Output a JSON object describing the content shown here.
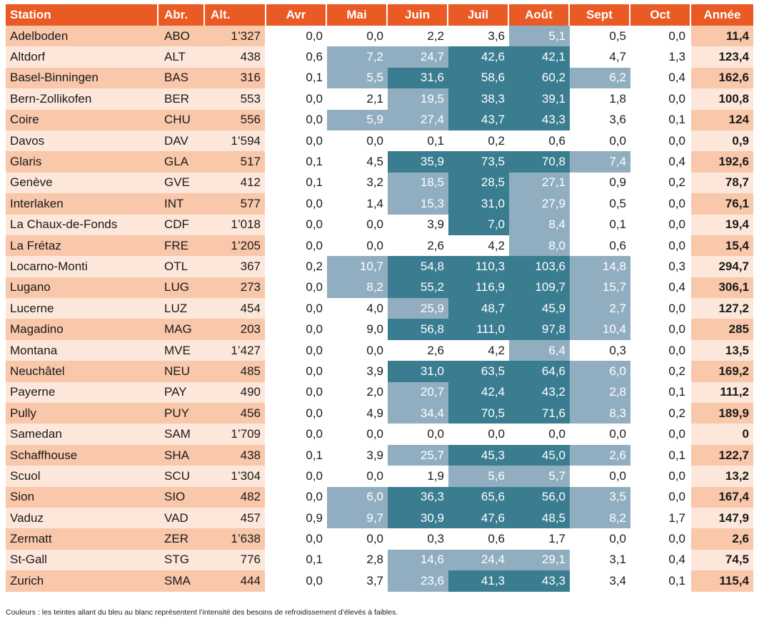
{
  "table": {
    "headers": [
      "Station",
      "Abr.",
      "Alt.",
      "Avr",
      "Mai",
      "Juin",
      "Juil",
      "Août",
      "Sept",
      "Oct",
      "Année"
    ],
    "colors": {
      "header": "#ea5a24",
      "row_dark": "#f9c7aa",
      "row_light": "#fde7da",
      "year_dark": "#f9c7aa",
      "year_light": "#fde7da",
      "shade_strong": "#3a7d91",
      "shade_light": "#91aec0"
    },
    "rows": [
      {
        "station": "Adelboden",
        "abr": "ABO",
        "alt": "1’327",
        "vals": [
          "0,0",
          "0,0",
          "2,2",
          "3,6",
          "5,1",
          "0,5",
          "0,0"
        ],
        "shade": [
          "w",
          "w",
          "w",
          "w",
          "l",
          "w",
          "w"
        ],
        "year": "11,4"
      },
      {
        "station": "Altdorf",
        "abr": "ALT",
        "alt": "438",
        "vals": [
          "0,6",
          "7,2",
          "24,7",
          "42,6",
          "42,1",
          "4,7",
          "1,3"
        ],
        "shade": [
          "w",
          "l",
          "l",
          "t",
          "t",
          "w",
          "w"
        ],
        "year": "123,4"
      },
      {
        "station": "Basel-Binningen",
        "abr": "BAS",
        "alt": "316",
        "vals": [
          "0,1",
          "5,5",
          "31,6",
          "58,6",
          "60,2",
          "6,2",
          "0,4"
        ],
        "shade": [
          "w",
          "l",
          "t",
          "t",
          "t",
          "l",
          "w"
        ],
        "year": "162,6"
      },
      {
        "station": "Bern-Zollikofen",
        "abr": "BER",
        "alt": "553",
        "vals": [
          "0,0",
          "2,1",
          "19,5",
          "38,3",
          "39,1",
          "1,8",
          "0,0"
        ],
        "shade": [
          "w",
          "w",
          "l",
          "t",
          "t",
          "w",
          "w"
        ],
        "year": "100,8"
      },
      {
        "station": "Coire",
        "abr": "CHU",
        "alt": "556",
        "vals": [
          "0,0",
          "5,9",
          "27,4",
          "43,7",
          "43,3",
          "3,6",
          "0,1"
        ],
        "shade": [
          "w",
          "l",
          "l",
          "t",
          "t",
          "w",
          "w"
        ],
        "year": "124"
      },
      {
        "station": "Davos",
        "abr": "DAV",
        "alt": "1’594",
        "vals": [
          "0,0",
          "0,0",
          "0,1",
          "0,2",
          "0,6",
          "0,0",
          "0,0"
        ],
        "shade": [
          "w",
          "w",
          "w",
          "w",
          "w",
          "w",
          "w"
        ],
        "year": "0,9"
      },
      {
        "station": "Glaris",
        "abr": "GLA",
        "alt": "517",
        "vals": [
          "0,1",
          "4,5",
          "35,9",
          "73,5",
          "70,8",
          "7,4",
          "0,4"
        ],
        "shade": [
          "w",
          "w",
          "t",
          "t",
          "t",
          "l",
          "w"
        ],
        "year": "192,6"
      },
      {
        "station": "Genève",
        "abr": "GVE",
        "alt": "412",
        "vals": [
          "0,1",
          "3,2",
          "18,5",
          "28,5",
          "27,1",
          "0,9",
          "0,2"
        ],
        "shade": [
          "w",
          "w",
          "l",
          "t",
          "l",
          "w",
          "w"
        ],
        "year": "78,7"
      },
      {
        "station": "Interlaken",
        "abr": "INT",
        "alt": "577",
        "vals": [
          "0,0",
          "1,4",
          "15,3",
          "31,0",
          "27,9",
          "0,5",
          "0,0"
        ],
        "shade": [
          "w",
          "w",
          "l",
          "t",
          "l",
          "w",
          "w"
        ],
        "year": "76,1"
      },
      {
        "station": "La Chaux-de-Fonds",
        "abr": "CDF",
        "alt": "1’018",
        "vals": [
          "0,0",
          "0,0",
          "3,9",
          "7,0",
          "8,4",
          "0,1",
          "0,0"
        ],
        "shade": [
          "w",
          "w",
          "w",
          "t",
          "l",
          "w",
          "w"
        ],
        "year": "19,4"
      },
      {
        "station": "La Frétaz",
        "abr": "FRE",
        "alt": "1’205",
        "vals": [
          "0,0",
          "0,0",
          "2,6",
          "4,2",
          "8,0",
          "0,6",
          "0,0"
        ],
        "shade": [
          "w",
          "w",
          "w",
          "w",
          "l",
          "w",
          "w"
        ],
        "year": "15,4"
      },
      {
        "station": "Locarno-Monti",
        "abr": "OTL",
        "alt": "367",
        "vals": [
          "0,2",
          "10,7",
          "54,8",
          "110,3",
          "103,6",
          "14,8",
          "0,3"
        ],
        "shade": [
          "w",
          "l",
          "t",
          "t",
          "t",
          "l",
          "w"
        ],
        "year": "294,7"
      },
      {
        "station": "Lugano",
        "abr": "LUG",
        "alt": "273",
        "vals": [
          "0,0",
          "8,2",
          "55,2",
          "116,9",
          "109,7",
          "15,7",
          "0,4"
        ],
        "shade": [
          "w",
          "l",
          "t",
          "t",
          "t",
          "l",
          "w"
        ],
        "year": "306,1"
      },
      {
        "station": "Lucerne",
        "abr": "LUZ",
        "alt": "454",
        "vals": [
          "0,0",
          "4,0",
          "25,9",
          "48,7",
          "45,9",
          "2,7",
          "0,0"
        ],
        "shade": [
          "w",
          "w",
          "l",
          "t",
          "t",
          "l",
          "w"
        ],
        "year": "127,2"
      },
      {
        "station": "Magadino",
        "abr": "MAG",
        "alt": "203",
        "vals": [
          "0,0",
          "9,0",
          "56,8",
          "111,0",
          "97,8",
          "10,4",
          "0,0"
        ],
        "shade": [
          "w",
          "w",
          "t",
          "t",
          "t",
          "l",
          "w"
        ],
        "year": "285"
      },
      {
        "station": "Montana",
        "abr": "MVE",
        "alt": "1’427",
        "vals": [
          "0,0",
          "0,0",
          "2,6",
          "4,2",
          "6,4",
          "0,3",
          "0,0"
        ],
        "shade": [
          "w",
          "w",
          "w",
          "w",
          "l",
          "w",
          "w"
        ],
        "year": "13,5"
      },
      {
        "station": "Neuchâtel",
        "abr": "NEU",
        "alt": "485",
        "vals": [
          "0,0",
          "3,9",
          "31,0",
          "63,5",
          "64,6",
          "6,0",
          "0,2"
        ],
        "shade": [
          "w",
          "w",
          "t",
          "t",
          "t",
          "l",
          "w"
        ],
        "year": "169,2"
      },
      {
        "station": "Payerne",
        "abr": "PAY",
        "alt": "490",
        "vals": [
          "0,0",
          "2,0",
          "20,7",
          "42,4",
          "43,2",
          "2,8",
          "0,1"
        ],
        "shade": [
          "w",
          "w",
          "l",
          "t",
          "t",
          "l",
          "w"
        ],
        "year": "111,2"
      },
      {
        "station": "Pully",
        "abr": "PUY",
        "alt": "456",
        "vals": [
          "0,0",
          "4,9",
          "34,4",
          "70,5",
          "71,6",
          "8,3",
          "0,2"
        ],
        "shade": [
          "w",
          "w",
          "l",
          "t",
          "t",
          "l",
          "w"
        ],
        "year": "189,9"
      },
      {
        "station": "Samedan",
        "abr": "SAM",
        "alt": "1’709",
        "vals": [
          "0,0",
          "0,0",
          "0,0",
          "0,0",
          "0,0",
          "0,0",
          "0,0"
        ],
        "shade": [
          "w",
          "w",
          "w",
          "w",
          "w",
          "w",
          "w"
        ],
        "year": "0"
      },
      {
        "station": "Schaffhouse",
        "abr": "SHA",
        "alt": "438",
        "vals": [
          "0,1",
          "3,9",
          "25,7",
          "45,3",
          "45,0",
          "2,6",
          "0,1"
        ],
        "shade": [
          "w",
          "w",
          "l",
          "t",
          "t",
          "l",
          "w"
        ],
        "year": "122,7"
      },
      {
        "station": "Scuol",
        "abr": "SCU",
        "alt": "1’304",
        "vals": [
          "0,0",
          "0,0",
          "1,9",
          "5,6",
          "5,7",
          "0,0",
          "0,0"
        ],
        "shade": [
          "w",
          "w",
          "w",
          "l",
          "l",
          "w",
          "w"
        ],
        "year": "13,2"
      },
      {
        "station": "Sion",
        "abr": "SIO",
        "alt": "482",
        "vals": [
          "0,0",
          "6,0",
          "36,3",
          "65,6",
          "56,0",
          "3,5",
          "0,0"
        ],
        "shade": [
          "w",
          "l",
          "t",
          "t",
          "t",
          "l",
          "w"
        ],
        "year": "167,4"
      },
      {
        "station": "Vaduz",
        "abr": "VAD",
        "alt": "457",
        "vals": [
          "0,9",
          "9,7",
          "30,9",
          "47,6",
          "48,5",
          "8,2",
          "1,7"
        ],
        "shade": [
          "w",
          "l",
          "t",
          "t",
          "t",
          "l",
          "w"
        ],
        "year": "147,9"
      },
      {
        "station": "Zermatt",
        "abr": "ZER",
        "alt": "1’638",
        "vals": [
          "0,0",
          "0,0",
          "0,3",
          "0,6",
          "1,7",
          "0,0",
          "0,0"
        ],
        "shade": [
          "w",
          "w",
          "w",
          "w",
          "w",
          "w",
          "w"
        ],
        "year": "2,6"
      },
      {
        "station": "St-Gall",
        "abr": "STG",
        "alt": "776",
        "vals": [
          "0,1",
          "2,8",
          "14,6",
          "24,4",
          "29,1",
          "3,1",
          "0,4"
        ],
        "shade": [
          "w",
          "w",
          "l",
          "l",
          "l",
          "w",
          "w"
        ],
        "year": "74,5"
      },
      {
        "station": "Zurich",
        "abr": "SMA",
        "alt": "444",
        "vals": [
          "0,0",
          "3,7",
          "23,6",
          "41,3",
          "43,3",
          "3,4",
          "0,1"
        ],
        "shade": [
          "w",
          "w",
          "l",
          "t",
          "t",
          "w",
          "w"
        ],
        "year": "115,4"
      }
    ]
  },
  "footnote": "Couleurs : les teintes allant du bleu au blanc représentent l’intensité des besoins de refroidissement d’élevés à faibles."
}
